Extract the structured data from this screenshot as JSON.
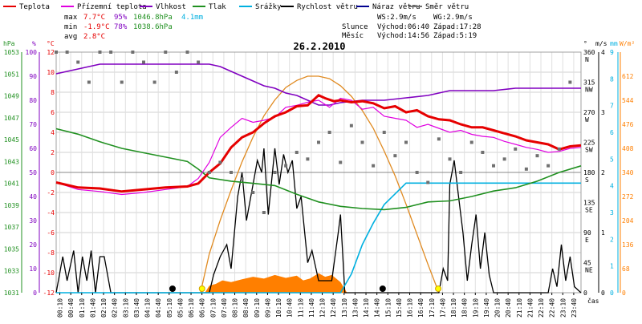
{
  "chart_data": {
    "type": "line",
    "title": "26.2.2010",
    "xlabel": "čas",
    "legend": [
      {
        "name": "Teplota",
        "color": "#e60000"
      },
      {
        "name": "Přízemní teplota",
        "color": "#e000e0"
      },
      {
        "name": "Vlhkost",
        "color": "#8000c0"
      },
      {
        "name": "Tlak",
        "color": "#209020"
      },
      {
        "name": "Srážky",
        "color": "#00b0e0"
      },
      {
        "name": "Rychlost větru",
        "color": "#000000"
      },
      {
        "name": "Náraz větru",
        "color": "#000090"
      },
      {
        "name": "Směr větru",
        "color": "#707070"
      }
    ],
    "stats": {
      "max_label": "max",
      "min_label": "min",
      "avg_label": "avg",
      "max_temp": "7.7°C",
      "max_hum": "95%",
      "max_press": "1046.8hPa",
      "max_rain": "4.1mm",
      "min_temp": "-1.9°C",
      "min_hum": "78%",
      "min_press": "1038.6hPa",
      "avg_temp": "2.8°C",
      "ws": "WS:2.9m/s",
      "wg": "WG:2.9m/s",
      "sun_label": "Slunce",
      "sunrise": "Východ:06:40",
      "sunset": "Západ:17:28",
      "moon_label": "Měsíc",
      "moonrise": "Východ:14:56",
      "moonset": "Západ:5:19"
    },
    "x_ticks": [
      "00:10",
      "00:40",
      "01:10",
      "01:40",
      "02:10",
      "02:40",
      "03:10",
      "03:40",
      "04:10",
      "04:40",
      "05:10",
      "05:40",
      "06:10",
      "06:40",
      "07:10",
      "07:40",
      "08:10",
      "08:40",
      "09:10",
      "09:40",
      "10:10",
      "10:40",
      "11:10",
      "11:40",
      "12:10",
      "12:40",
      "13:10",
      "13:40",
      "14:10",
      "14:40",
      "15:10",
      "15:40",
      "16:10",
      "16:40",
      "17:10",
      "17:40",
      "18:10",
      "18:40",
      "19:10",
      "19:40",
      "20:10",
      "20:40",
      "21:10",
      "21:40",
      "22:10",
      "22:40",
      "23:10",
      "23:40"
    ],
    "axes": {
      "pressure": {
        "unit": "hPa",
        "ticks": [
          "1053",
          "1051",
          "1049",
          "1047",
          "1045",
          "1043",
          "1041",
          "1039",
          "1037",
          "1035",
          "1033",
          "1031"
        ],
        "range": [
          1031,
          1053
        ]
      },
      "humidity": {
        "unit": "%",
        "ticks": [
          "100",
          "90",
          "80",
          "70",
          "60",
          "50",
          "40",
          "30",
          "20",
          "10",
          "0"
        ],
        "range": [
          0,
          100
        ]
      },
      "temperature": {
        "unit": "°C",
        "ticks": [
          "12",
          "10",
          "8",
          "6",
          "4",
          "2",
          "0",
          "-2",
          "-4",
          "-6",
          "-8",
          "-10",
          "-12"
        ],
        "range": [
          -12,
          12
        ]
      },
      "wind_dir": {
        "unit": "°",
        "ticks": [
          "360",
          "315",
          "270",
          "225",
          "180",
          "135",
          "90",
          "45",
          "0"
        ],
        "labels": [
          "N",
          "NW",
          "W",
          "SW",
          "S",
          "SE",
          "E",
          "NE",
          ""
        ],
        "range": [
          0,
          360
        ]
      },
      "wind_speed": {
        "unit": "m/s",
        "ticks": [
          "4",
          "3",
          "2",
          "1",
          "0"
        ],
        "range": [
          0,
          4
        ]
      },
      "rain": {
        "unit": "mm",
        "ticks": [
          "9",
          "8",
          "7",
          "6",
          "5",
          "4",
          "3",
          "2",
          "1",
          "0"
        ],
        "range": [
          0,
          9
        ]
      },
      "solar": {
        "unit": "W/m²",
        "ticks": [
          "612",
          "544",
          "476",
          "408",
          "340",
          "272",
          "204",
          "136",
          "68",
          "0"
        ],
        "range": [
          0,
          680
        ]
      }
    },
    "series": {
      "temperature": {
        "x": [
          0,
          1,
          2,
          3,
          4,
          5,
          6,
          6.5,
          7,
          7.5,
          8,
          8.5,
          9,
          9.5,
          10,
          10.5,
          11,
          11.5,
          12,
          12.3,
          12.7,
          13,
          13.5,
          14,
          14.5,
          15,
          15.5,
          16,
          16.5,
          17,
          17.5,
          18,
          18.5,
          19,
          19.5,
          20,
          20.5,
          21,
          21.5,
          22,
          22.5,
          23,
          23.5,
          24
        ],
        "y": [
          -1.0,
          -1.5,
          -1.6,
          -1.9,
          -1.7,
          -1.5,
          -1.4,
          -1.1,
          0.0,
          0.9,
          2.5,
          3.5,
          4.0,
          4.9,
          5.6,
          6.0,
          6.6,
          6.7,
          7.7,
          7.4,
          7.1,
          7.2,
          7.0,
          7.1,
          6.9,
          6.4,
          6.6,
          6.0,
          6.2,
          5.6,
          5.3,
          5.2,
          4.8,
          4.5,
          4.5,
          4.2,
          3.9,
          3.6,
          3.2,
          3.0,
          2.8,
          2.3,
          2.6,
          2.7
        ]
      },
      "ground_temperature": {
        "x": [
          0,
          1,
          2,
          3,
          4,
          5,
          6,
          6.5,
          7,
          7.5,
          8,
          8.5,
          9,
          9.5,
          10,
          10.5,
          11,
          11.5,
          12,
          12.5,
          13,
          13.5,
          14,
          14.5,
          15,
          15.5,
          16,
          16.5,
          17,
          17.5,
          18,
          18.5,
          19,
          19.5,
          20,
          20.5,
          21,
          21.5,
          22,
          22.5,
          23,
          23.5,
          24
        ],
        "y": [
          -1.0,
          -1.7,
          -1.9,
          -2.2,
          -2.0,
          -1.7,
          -1.4,
          -0.6,
          1.0,
          3.5,
          4.5,
          5.4,
          5.0,
          5.2,
          5.5,
          6.5,
          6.7,
          7.0,
          7.2,
          6.5,
          7.4,
          7.2,
          6.3,
          6.5,
          5.6,
          5.4,
          5.2,
          4.5,
          4.8,
          4.4,
          4.0,
          4.2,
          3.8,
          3.6,
          3.5,
          3.1,
          2.8,
          2.5,
          2.3,
          2.0,
          2.1,
          2.4,
          2.5
        ]
      },
      "humidity": {
        "x": [
          0,
          0.5,
          1,
          1.5,
          2,
          3,
          4,
          5,
          6,
          7,
          7.5,
          8,
          9,
          9.5,
          10,
          10.5,
          11,
          11.5,
          12,
          12.5,
          13,
          14,
          15,
          16,
          17,
          17.5,
          18,
          19,
          20,
          21,
          22,
          23,
          23.5,
          24
        ],
        "y": [
          91,
          92,
          93,
          94,
          95,
          95,
          95,
          95,
          95,
          95,
          94,
          92,
          88,
          86,
          85,
          83,
          82,
          80,
          78,
          78,
          79,
          80,
          80,
          81,
          82,
          83,
          84,
          84,
          84,
          85,
          85,
          85,
          85,
          85
        ]
      },
      "pressure": {
        "x": [
          0,
          1,
          2,
          3,
          4,
          5,
          6,
          6.5,
          7,
          8,
          9,
          10,
          11,
          12,
          13,
          14,
          15,
          16,
          17,
          18,
          19,
          20,
          21,
          22,
          23,
          24
        ],
        "y": [
          1046.0,
          1045.5,
          1044.8,
          1044.2,
          1043.8,
          1043.4,
          1043.0,
          1042.3,
          1041.5,
          1041.2,
          1041.0,
          1040.8,
          1040.0,
          1039.3,
          1038.9,
          1038.7,
          1038.6,
          1038.8,
          1039.3,
          1039.4,
          1039.8,
          1040.3,
          1040.6,
          1041.2,
          1042.0,
          1042.6
        ]
      },
      "rain": {
        "x": [
          0,
          12,
          13,
          13.5,
          14,
          14.5,
          15,
          15.5,
          16,
          16.5,
          17,
          18,
          20,
          22,
          24
        ],
        "y": [
          0,
          0,
          0,
          0.7,
          1.8,
          2.6,
          3.3,
          3.7,
          4.1,
          4.1,
          4.1,
          4.1,
          4.1,
          4.1,
          4.1
        ]
      },
      "wind_speed": {
        "x": [
          0,
          0.3,
          0.5,
          0.8,
          1,
          1.2,
          1.4,
          1.6,
          1.8,
          2,
          2.2,
          2.5,
          3,
          4,
          5,
          5.5,
          6,
          6.5,
          7,
          7.2,
          7.5,
          7.8,
          8,
          8.3,
          8.5,
          8.7,
          9,
          9.2,
          9.4,
          9.5,
          9.7,
          10,
          10.2,
          10.4,
          10.6,
          10.8,
          11,
          11.2,
          11.5,
          11.7,
          12,
          12.3,
          12.6,
          12.9,
          13,
          13.2,
          13.5,
          14,
          14.5,
          15,
          15.5,
          16,
          16.5,
          17,
          17.5,
          17.7,
          17.9,
          18,
          18.2,
          18.4,
          18.6,
          18.8,
          19,
          19.2,
          19.4,
          19.6,
          19.8,
          20,
          20.5,
          21,
          21.5,
          22,
          22.5,
          22.7,
          22.9,
          23.1,
          23.3,
          23.5,
          23.7,
          24
        ],
        "y": [
          0,
          0.6,
          0.2,
          0.7,
          0,
          0.6,
          0.2,
          0.7,
          0,
          0.6,
          0.6,
          0,
          0,
          0,
          0,
          0,
          0,
          0,
          0,
          0.3,
          0.6,
          0.8,
          0.4,
          1.6,
          2.0,
          1.2,
          1.8,
          2.2,
          2.0,
          2.4,
          1.3,
          2.4,
          1.8,
          2.3,
          2.0,
          2.2,
          1.4,
          1.6,
          0.5,
          0.7,
          0.2,
          0.2,
          0.2,
          1.0,
          1.3,
          0,
          0,
          0,
          0,
          0,
          0,
          0,
          0,
          0,
          0,
          0.4,
          0.2,
          1.8,
          2.2,
          1.6,
          1.0,
          0.2,
          0.8,
          1.3,
          0.4,
          1.0,
          0.3,
          0,
          0,
          0,
          0,
          0,
          0,
          0.4,
          0.1,
          0.8,
          0.2,
          0.6,
          0.1,
          0
        ]
      },
      "wind_dir": {
        "x": [
          0,
          0.5,
          1,
          1.5,
          2,
          2.5,
          3,
          3.5,
          4,
          4.5,
          5,
          5.5,
          6,
          6.5,
          7,
          7.5,
          8,
          8.5,
          9,
          9.5,
          10,
          10.5,
          11,
          11.5,
          12,
          12.5,
          13,
          13.5,
          14,
          14.5,
          15,
          15.5,
          16,
          16.5,
          17,
          17.5,
          18,
          18.5,
          19,
          19.5,
          20,
          20.5,
          21,
          21.5,
          22,
          22.5,
          23,
          23.5
        ],
        "y": [
          360,
          360,
          345,
          315,
          360,
          360,
          315,
          360,
          345,
          315,
          360,
          330,
          360,
          345,
          180,
          195,
          180,
          170,
          150,
          120,
          180,
          190,
          210,
          200,
          225,
          240,
          195,
          250,
          225,
          190,
          240,
          205,
          225,
          180,
          165,
          230,
          200,
          180,
          225,
          210,
          190,
          200,
          215,
          185,
          205,
          190,
          215,
          315
        ]
      },
      "solar": {
        "x": [
          6.6,
          7,
          7.5,
          8,
          8.5,
          9,
          9.5,
          10,
          10.5,
          11,
          11.5,
          12,
          12.5,
          13,
          13.5,
          14,
          14.5,
          15,
          15.5,
          16,
          16.5,
          17,
          17.5
        ],
        "y": [
          0,
          110,
          205,
          290,
          370,
          440,
          500,
          545,
          580,
          600,
          612,
          612,
          605,
          585,
          555,
          515,
          465,
          400,
          330,
          250,
          165,
          80,
          0
        ]
      },
      "solar_area": {
        "x": [
          6.8,
          7,
          7.3,
          7.6,
          8,
          8.5,
          9,
          9.5,
          10,
          10.5,
          11,
          11.3,
          11.6,
          12,
          12.3,
          12.6,
          13,
          13.3
        ],
        "y": [
          0,
          20,
          25,
          35,
          30,
          38,
          45,
          40,
          50,
          42,
          48,
          35,
          40,
          55,
          45,
          50,
          30,
          0
        ]
      }
    },
    "markers": [
      {
        "name": "moonset",
        "time": 5.32
      },
      {
        "name": "sunrise",
        "time": 6.67
      },
      {
        "name": "moonrise",
        "time": 14.93
      },
      {
        "name": "sunset",
        "time": 17.47
      }
    ]
  }
}
